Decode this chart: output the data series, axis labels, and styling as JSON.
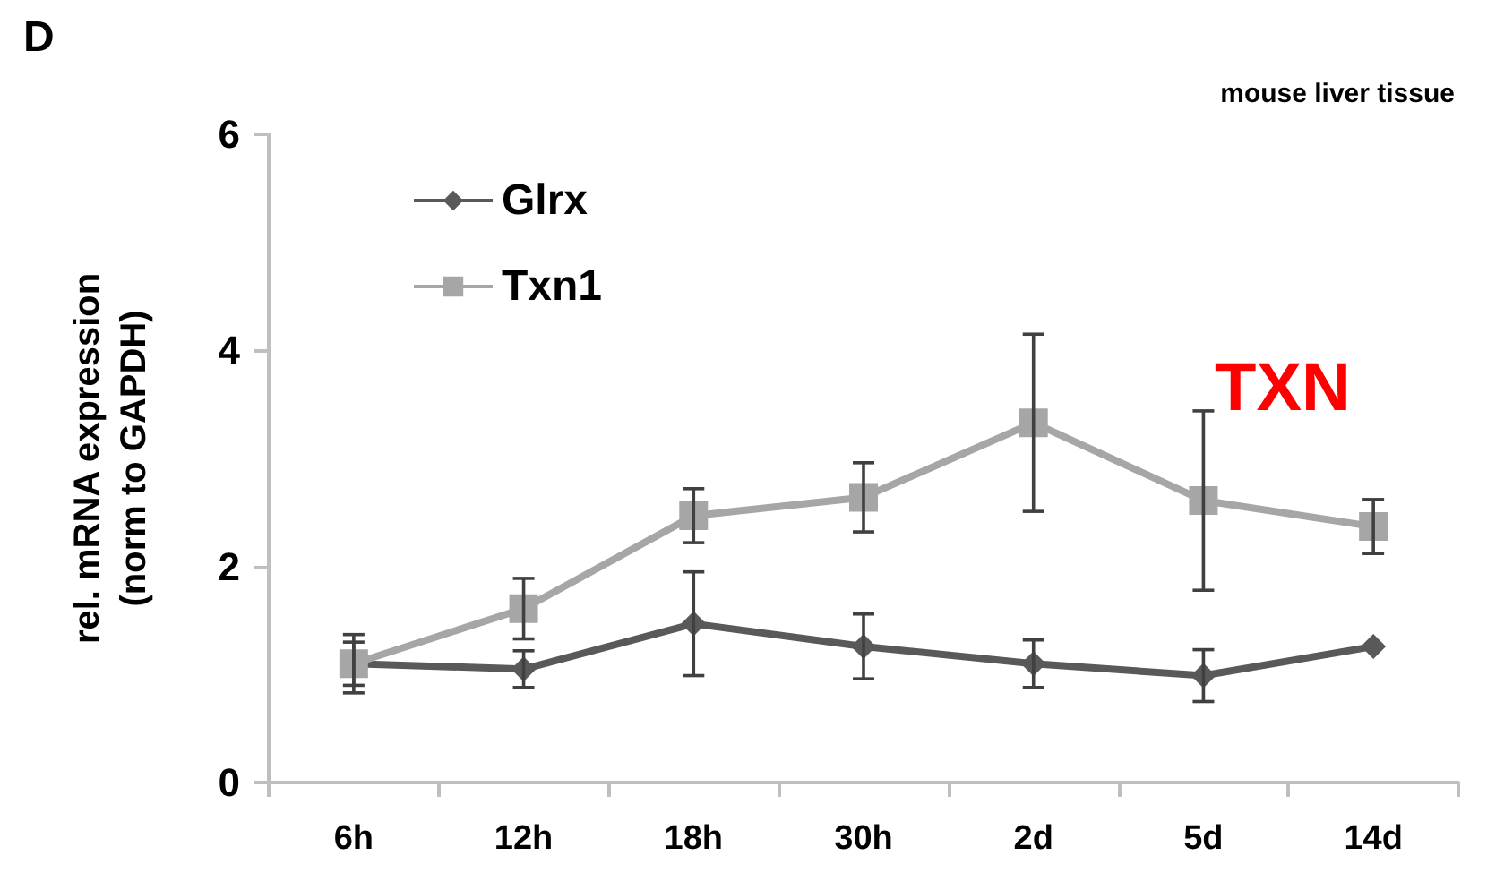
{
  "chart_data": {
    "type": "line",
    "title": "D",
    "ylabel": "rel. mRNA expression\n(norm to GAPDH)",
    "annotations": [
      "mouse liver tissue",
      "TXN"
    ],
    "categories": [
      "6h",
      "12h",
      "18h",
      "30h",
      "2d",
      "5d",
      "14d"
    ],
    "series": [
      {
        "name": "Glrx",
        "color": "#595959",
        "marker": "diamond",
        "values": [
          1.1,
          1.05,
          1.47,
          1.26,
          1.1,
          0.99,
          1.26
        ],
        "errors": [
          0.27,
          0.17,
          0.48,
          0.3,
          0.22,
          0.24,
          null
        ]
      },
      {
        "name": "Txn1",
        "color": "#a6a6a6",
        "marker": "square",
        "values": [
          1.1,
          1.61,
          2.47,
          2.64,
          3.33,
          2.61,
          2.37
        ],
        "errors": [
          0.2,
          0.28,
          0.25,
          0.32,
          0.82,
          0.83,
          0.25
        ]
      }
    ],
    "ylim": [
      0,
      6
    ],
    "yticks": [
      0,
      2,
      4,
      6
    ],
    "grid": false,
    "legend": "top left"
  }
}
